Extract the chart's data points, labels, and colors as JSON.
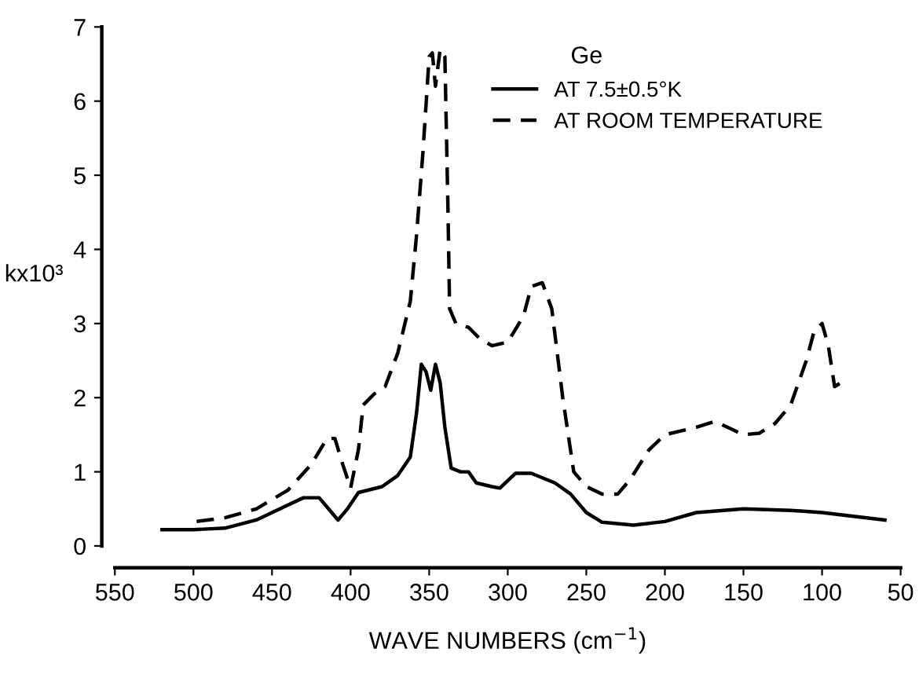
{
  "chart_data": {
    "type": "line",
    "xlabel": "WAVE NUMBERS (cm$^{−1}$)",
    "ylabel": "kx10³",
    "annotations": [
      "Ge"
    ],
    "xlim": [
      550,
      50
    ],
    "xticks": [
      550,
      500,
      450,
      400,
      350,
      300,
      250,
      200,
      150,
      100,
      50
    ],
    "ylim": [
      0,
      7
    ],
    "yticks": [
      0,
      1,
      2,
      3,
      4,
      5,
      6,
      7
    ],
    "grid": false,
    "legend": "top right",
    "marker": "none",
    "series": [
      {
        "name": "AT 7.5±0.5°K",
        "color": "#000000",
        "line_style": "solid",
        "x": [
          520,
          500,
          480,
          460,
          440,
          430,
          420,
          412,
          408,
          402,
          395,
          380,
          370,
          362,
          358,
          355,
          352,
          349,
          346,
          343,
          340,
          336,
          330,
          325,
          320,
          310,
          305,
          295,
          285,
          270,
          260,
          250,
          240,
          220,
          200,
          180,
          150,
          120,
          100,
          80,
          60
        ],
        "values": [
          0.22,
          0.22,
          0.24,
          0.35,
          0.55,
          0.65,
          0.65,
          0.45,
          0.35,
          0.5,
          0.72,
          0.8,
          0.95,
          1.2,
          1.8,
          2.45,
          2.35,
          2.1,
          2.45,
          2.2,
          1.6,
          1.05,
          1.0,
          1.0,
          0.85,
          0.8,
          0.78,
          0.98,
          0.98,
          0.85,
          0.7,
          0.45,
          0.32,
          0.28,
          0.33,
          0.45,
          0.5,
          0.48,
          0.45,
          0.4,
          0.35
        ]
      },
      {
        "name": "AT ROOM TEMPERATURE",
        "color": "#000000",
        "line_style": "dashed",
        "x": [
          498,
          480,
          460,
          440,
          425,
          415,
          410,
          405,
          400,
          395,
          392,
          385,
          378,
          370,
          362,
          358,
          354,
          350,
          348,
          346,
          343,
          340,
          338,
          337,
          333,
          325,
          318,
          310,
          300,
          290,
          285,
          278,
          272,
          265,
          258,
          250,
          240,
          230,
          222,
          210,
          200,
          190,
          180,
          168,
          160,
          150,
          140,
          130,
          120,
          110,
          105,
          100,
          96,
          92,
          88,
          85
        ],
        "values": [
          0.33,
          0.38,
          0.5,
          0.75,
          1.1,
          1.45,
          1.45,
          1.1,
          0.78,
          1.3,
          1.9,
          2.05,
          2.15,
          2.6,
          3.3,
          4.2,
          5.3,
          6.6,
          6.65,
          6.2,
          6.7,
          6.6,
          4.5,
          3.2,
          3.0,
          2.95,
          2.8,
          2.7,
          2.75,
          3.1,
          3.5,
          3.55,
          3.2,
          2.0,
          1.0,
          0.8,
          0.7,
          0.7,
          0.9,
          1.3,
          1.5,
          1.55,
          1.6,
          1.68,
          1.6,
          1.5,
          1.52,
          1.65,
          1.9,
          2.5,
          2.9,
          3.0,
          2.7,
          2.15,
          2.2,
          2.25
        ]
      }
    ]
  }
}
